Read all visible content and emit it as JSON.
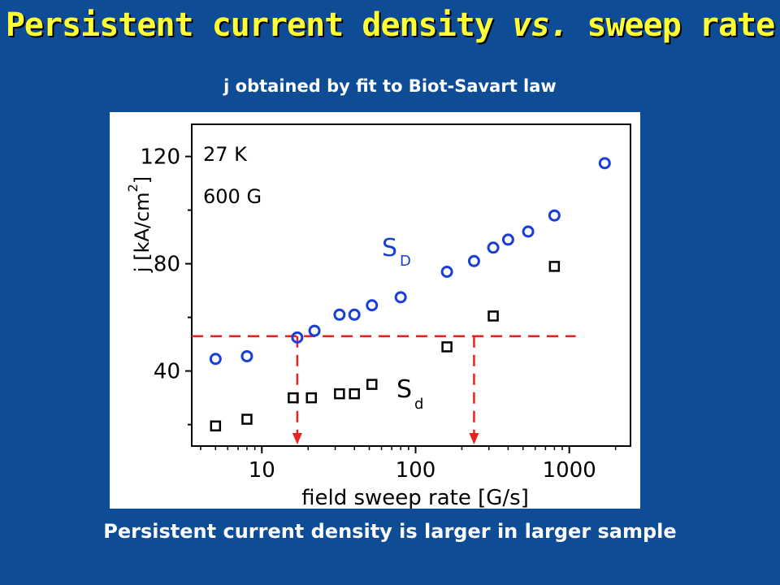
{
  "slide": {
    "title_main": "Persistent current density ",
    "title_vs": "vs.",
    "title_end": " sweep rate",
    "subtitle": "j obtained by fit to Biot-Savart law",
    "caption": "Persistent current density is larger in larger sample",
    "title_color": "#ffff33",
    "background_color": "#0f4c96"
  },
  "chart_data": {
    "type": "scatter",
    "xscale": "log",
    "xlim": [
      3.5,
      2500
    ],
    "ylim": [
      12,
      132
    ],
    "x_ticks": [
      "10",
      "100",
      "1000"
    ],
    "y_ticks": [
      "40",
      "80",
      "120"
    ],
    "xlabel": "field sweep rate [G/s]",
    "ylabel": "j [kA/cm",
    "ylabel_sup": "2",
    "ylabel_end": "]",
    "annotations": [
      "27 K",
      "600 G"
    ],
    "series": [
      {
        "name": "S",
        "name_sub": "D",
        "marker": "circle",
        "color": "#1a3fd6",
        "x": [
          5,
          8,
          17,
          22,
          32,
          40,
          52,
          80,
          160,
          240,
          320,
          400,
          540,
          800,
          1700
        ],
        "y": [
          44.5,
          45.5,
          52.5,
          55,
          61,
          61,
          64.5,
          67.5,
          77,
          81,
          86,
          89,
          92,
          98,
          117.5
        ]
      },
      {
        "name": "S",
        "name_sub": "d",
        "marker": "square",
        "color": "#000000",
        "x": [
          5,
          8,
          16,
          21,
          32,
          40,
          52,
          160,
          320,
          800
        ],
        "y": [
          19.5,
          22,
          30,
          30,
          31.5,
          31.5,
          35,
          49,
          60.5,
          79
        ]
      }
    ],
    "reference_lines": {
      "color": "#e8221c",
      "y_level": 53,
      "x_from": 17,
      "x_to": 240,
      "x_end": 1100
    }
  }
}
